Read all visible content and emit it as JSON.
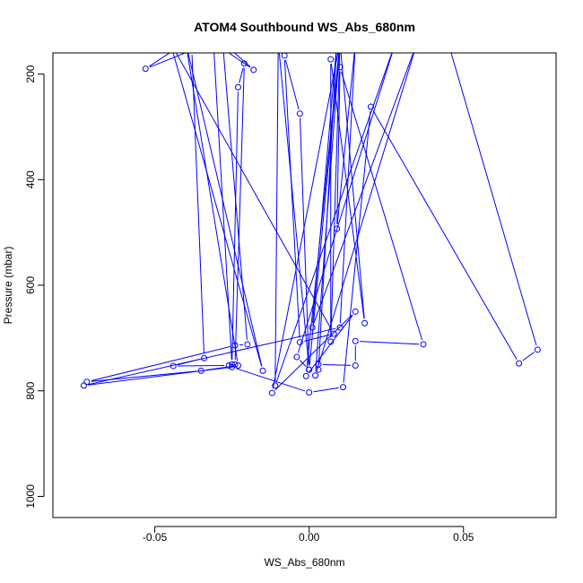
{
  "chart_data": {
    "type": "line",
    "title": "ATOM4 Southbound WS_Abs_680nm",
    "xlabel": "WS_Abs_680nm",
    "ylabel": "Pressure (mbar)",
    "xlim": [
      -0.083,
      0.08
    ],
    "ylim": [
      1040,
      160
    ],
    "y_reversed": true,
    "x_ticks": [
      -0.05,
      0.0,
      0.05
    ],
    "x_tick_labels": [
      "-0.05",
      "0.00",
      "0.05"
    ],
    "y_ticks": [
      200,
      400,
      600,
      800,
      1000
    ],
    "y_tick_labels": [
      "200",
      "400",
      "600",
      "800",
      "1000"
    ],
    "grid": false,
    "line_color": "#0000ff",
    "marker": "open-circle",
    "series": [
      {
        "values": [
          [
            -0.04,
            140
          ],
          [
            -0.053,
            190
          ],
          [
            -0.038,
            155
          ],
          [
            -0.034,
            738
          ],
          [
            -0.044,
            753
          ],
          [
            -0.026,
            752
          ],
          [
            -0.024,
            750
          ],
          [
            -0.021,
            180
          ],
          [
            -0.023,
            225
          ],
          [
            -0.025,
            750
          ],
          [
            -0.031,
            140
          ],
          [
            -0.018,
            192
          ],
          [
            -0.028,
            140
          ],
          [
            -0.02,
            712
          ],
          [
            -0.024,
            714
          ],
          [
            -0.072,
            783
          ],
          [
            -0.035,
            762
          ],
          [
            -0.023,
            752
          ],
          [
            -0.04,
            140
          ],
          [
            -0.015,
            762
          ],
          [
            -0.045,
            140
          ],
          [
            0.008,
            692
          ],
          [
            -0.003,
            708
          ],
          [
            -0.008,
            165
          ],
          [
            -0.003,
            275
          ],
          [
            0.0,
            760
          ],
          [
            -0.01,
            140
          ],
          [
            -0.011,
            790
          ],
          [
            0.028,
            140
          ],
          [
            -0.004,
            736
          ],
          [
            0.0,
            760
          ],
          [
            0.01,
            140
          ],
          [
            -0.001,
            772
          ],
          [
            0.015,
            650
          ],
          [
            -0.012,
            804
          ],
          [
            0.01,
            140
          ],
          [
            0.007,
            707
          ],
          [
            0.007,
            172
          ],
          [
            0.018,
            672
          ],
          [
            0.01,
            140
          ],
          [
            0.002,
            771
          ],
          [
            0.035,
            140
          ],
          [
            0.001,
            680
          ],
          [
            0.009,
            140
          ],
          [
            0.003,
            760
          ],
          [
            0.003,
            750
          ],
          [
            0.015,
            752
          ],
          [
            0.015,
            706
          ],
          [
            0.037,
            712
          ],
          [
            0.01,
            187
          ],
          [
            0.009,
            493
          ],
          [
            0.015,
            140
          ],
          [
            0.01,
            680
          ],
          [
            -0.073,
            790
          ],
          [
            -0.025,
            755
          ],
          [
            0.0,
            803
          ],
          [
            0.011,
            793
          ],
          [
            0.02,
            262
          ],
          [
            0.068,
            748
          ],
          [
            0.074,
            722
          ],
          [
            0.045,
            140
          ]
        ]
      }
    ]
  }
}
